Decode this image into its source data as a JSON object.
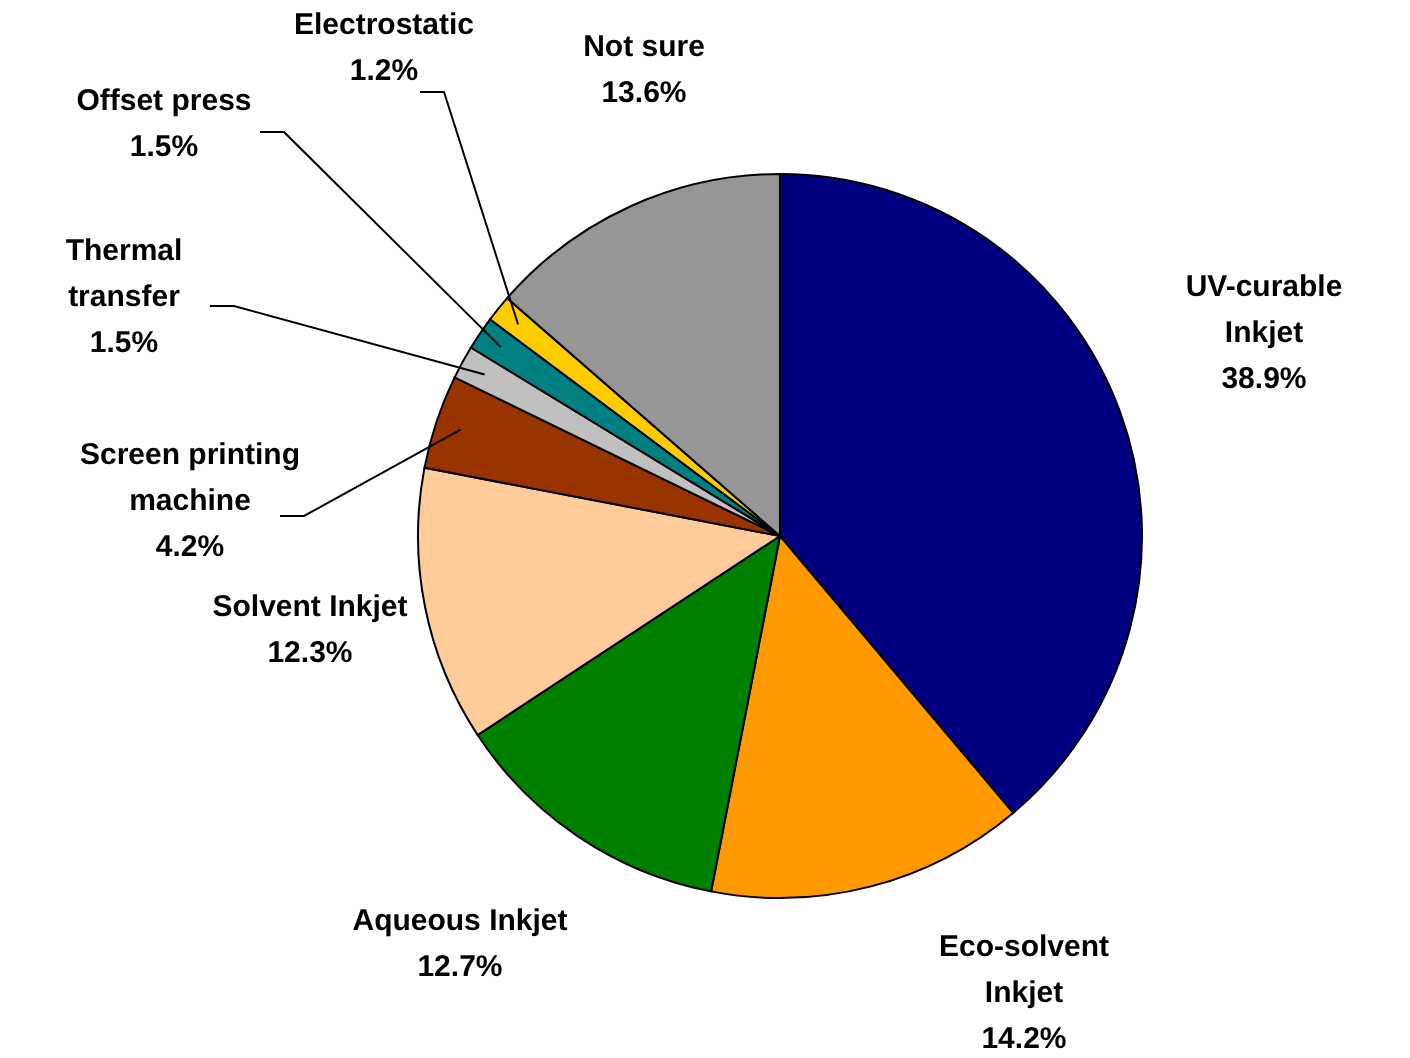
{
  "chart_data": {
    "type": "pie",
    "categories": [
      "UV-curable\nInkjet",
      "Eco-solvent\nInkjet",
      "Aqueous Inkjet",
      "Solvent Inkjet",
      "Screen printing\nmachine",
      "Thermal\ntransfer",
      "Offset press",
      "Electrostatic",
      "Not sure"
    ],
    "values": [
      38.9,
      14.2,
      12.7,
      12.3,
      4.2,
      1.5,
      1.5,
      1.2,
      13.6
    ],
    "colors": [
      "#000080",
      "#ff9900",
      "#008000",
      "#ffcc99",
      "#993300",
      "#c0c0c0",
      "#008080",
      "#ffcc00",
      "#969696"
    ],
    "value_labels": [
      "38.9%",
      "14.2%",
      "12.7%",
      "12.3%",
      "4.2%",
      "1.5%",
      "1.5%",
      "1.2%",
      "13.6%"
    ]
  }
}
